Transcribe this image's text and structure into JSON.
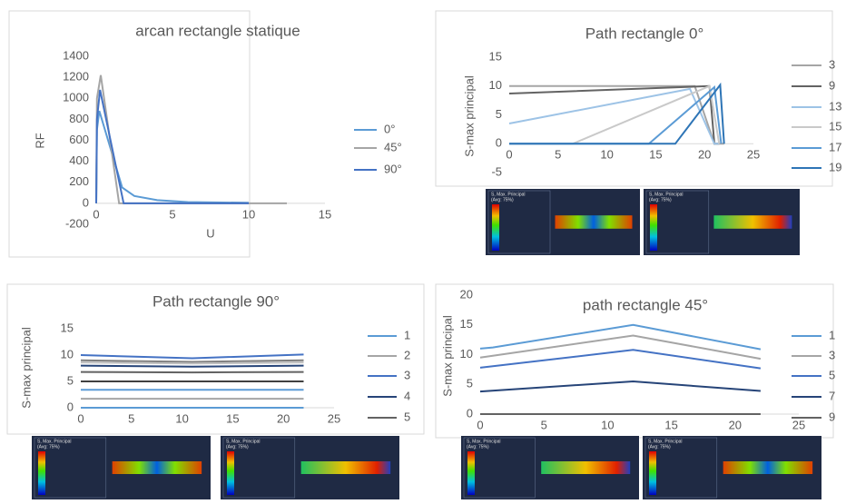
{
  "chart_data": [
    {
      "type": "line",
      "title": "arcan rectangle statique",
      "x_label": "U",
      "y_label": "RF",
      "xlim": [
        0,
        15
      ],
      "xticks": [
        0,
        5,
        10,
        15
      ],
      "ylim": [
        -200,
        1400
      ],
      "yticks": [
        -200,
        0,
        200,
        400,
        600,
        800,
        1000,
        1200,
        1400
      ],
      "series": [
        {
          "name": "0°",
          "color": "#5b9bd5",
          "x": [
            0,
            0.05,
            0.2,
            1.7,
            2.5,
            4,
            6,
            10
          ],
          "values": [
            0,
            700,
            880,
            150,
            70,
            30,
            12,
            5
          ]
        },
        {
          "name": "45°",
          "color": "#a5a5a5",
          "x": [
            0,
            0.05,
            0.3,
            1.5,
            12.5
          ],
          "values": [
            0,
            1000,
            1220,
            0,
            0
          ]
        },
        {
          "name": "90°",
          "color": "#4472c4",
          "x": [
            0,
            0.05,
            0.25,
            1.8,
            10
          ],
          "values": [
            0,
            800,
            1080,
            0,
            0
          ]
        }
      ]
    },
    {
      "type": "line",
      "title": "Path rectangle 0°",
      "y_label": "S-max principal",
      "xlim": [
        0,
        25
      ],
      "xticks": [
        0,
        5,
        10,
        15,
        20,
        25
      ],
      "ylim": [
        -5,
        15
      ],
      "yticks": [
        -5,
        0,
        5,
        10,
        15
      ],
      "series": [
        {
          "name": "3",
          "color": "#a5a5a5",
          "x": [
            0,
            19,
            21,
            22
          ],
          "values": [
            10,
            10,
            0,
            0
          ]
        },
        {
          "name": "9",
          "color": "#636363",
          "x": [
            0,
            20.5,
            21,
            21.5
          ],
          "values": [
            8.7,
            10,
            0,
            0
          ]
        },
        {
          "name": "13",
          "color": "#9dc3e6",
          "x": [
            0,
            18.5,
            21,
            21.5
          ],
          "values": [
            3.5,
            9.5,
            0,
            0
          ]
        },
        {
          "name": "15",
          "color": "#c9c9c9",
          "x": [
            0,
            6.5,
            20.5,
            21.5
          ],
          "values": [
            0,
            0,
            10,
            0
          ]
        },
        {
          "name": "17",
          "color": "#5b9bd5",
          "x": [
            0,
            14.3,
            21,
            21.7
          ],
          "values": [
            0,
            0,
            9.8,
            0
          ]
        },
        {
          "name": "19",
          "color": "#2e75b6",
          "x": [
            0,
            17,
            21.6,
            22
          ],
          "values": [
            0,
            0,
            10.2,
            0
          ]
        }
      ]
    },
    {
      "type": "line",
      "title": "Path rectangle 90°",
      "y_label": "S-max principal",
      "xlim": [
        0,
        25
      ],
      "xticks": [
        0,
        5,
        10,
        15,
        20,
        25
      ],
      "ylim": [
        0,
        15
      ],
      "yticks": [
        0,
        5,
        10,
        15
      ],
      "series": [
        {
          "name": "1",
          "color": "#5b9bd5",
          "x": [
            0,
            11,
            22
          ],
          "values": [
            3.4,
            3.4,
            3.4
          ]
        },
        {
          "name": "2",
          "color": "#a5a5a5",
          "x": [
            0,
            11,
            22
          ],
          "values": [
            1.7,
            1.7,
            1.7
          ]
        },
        {
          "name": "3",
          "color": "#4472c4",
          "x": [
            0,
            11,
            22
          ],
          "values": [
            10,
            9.4,
            10.1
          ]
        },
        {
          "name": "4",
          "color": "#264478",
          "x": [
            0,
            11,
            22
          ],
          "values": [
            8,
            7.8,
            8
          ]
        },
        {
          "name": "5",
          "color": "#636363",
          "x": [
            0,
            11,
            22
          ],
          "values": [
            6.8,
            6.7,
            6.8
          ]
        },
        {
          "color": "#7f7f7f",
          "x": [
            0,
            11,
            22
          ],
          "values": [
            9,
            8.7,
            9
          ]
        },
        {
          "color": "#bfbfbf",
          "x": [
            0,
            11,
            22
          ],
          "values": [
            8.6,
            8.4,
            8.6
          ]
        },
        {
          "color": "#404040",
          "x": [
            0,
            11,
            22
          ],
          "values": [
            5,
            5,
            5
          ]
        },
        {
          "color": "#5b9bd5",
          "x": [
            0,
            11,
            22
          ],
          "values": [
            0,
            0,
            0
          ]
        }
      ]
    },
    {
      "type": "line",
      "title": "path rectangle 45°",
      "y_label": "S-max principal",
      "xlim": [
        0,
        25
      ],
      "xticks": [
        0,
        5,
        10,
        15,
        20,
        25
      ],
      "ylim": [
        0,
        20
      ],
      "yticks": [
        0,
        5,
        10,
        15,
        20
      ],
      "series": [
        {
          "name": "1",
          "color": "#5b9bd5",
          "x": [
            0,
            1,
            12,
            22
          ],
          "values": [
            11,
            11.2,
            15,
            10.9
          ]
        },
        {
          "name": "3",
          "color": "#a5a5a5",
          "x": [
            0,
            12,
            22
          ],
          "values": [
            9.5,
            13.2,
            9.3
          ]
        },
        {
          "name": "5",
          "color": "#4472c4",
          "x": [
            0,
            12,
            22
          ],
          "values": [
            7.8,
            10.8,
            7.7
          ]
        },
        {
          "name": "7",
          "color": "#264478",
          "x": [
            0,
            12,
            22
          ],
          "values": [
            3.8,
            5.5,
            3.9
          ]
        },
        {
          "name": "9",
          "color": "#636363",
          "x": [
            0,
            22
          ],
          "values": [
            0,
            0
          ]
        }
      ]
    }
  ],
  "thumbnails": [
    {
      "title": "S, Max. Principal",
      "subtitle": "(Avg: 75%)"
    },
    {
      "title": "S, Max. Principal",
      "subtitle": "(Avg: 75%)"
    },
    {
      "title": "S, Max. Principal",
      "subtitle": "(Avg: 75%)"
    },
    {
      "title": "S, Max. Principal",
      "subtitle": "(Avg: 75%)"
    },
    {
      "title": "S, Max. Principal",
      "subtitle": "(Avg: 75%)"
    },
    {
      "title": "S, Max. Principal",
      "subtitle": "(Avg: 75%)"
    }
  ]
}
